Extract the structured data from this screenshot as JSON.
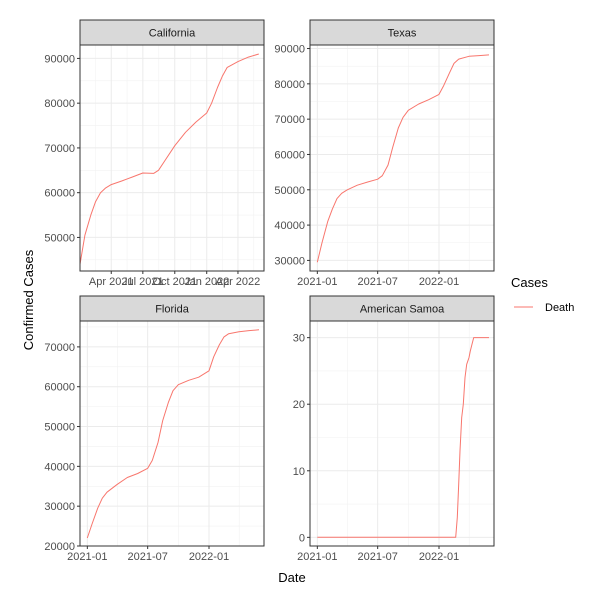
{
  "chart_data": {
    "type": "line",
    "xlabel": "Date",
    "ylabel": "Confirmed Cases",
    "legend": {
      "title": "Cases",
      "placement": "right",
      "entries": [
        "Death"
      ]
    },
    "series_color": "#f8766d",
    "grid": true,
    "panels": [
      {
        "name": "California",
        "xlim": [
          "2021-01-01",
          "2022-06-15"
        ],
        "ylim": [
          42500,
          93000
        ],
        "x_ticks": [
          {
            "value": "2021-04-01",
            "label": "Apr 2021"
          },
          {
            "value": "2021-07-01",
            "label": "Jul 2021"
          },
          {
            "value": "2021-10-01",
            "label": "Oct 2021"
          },
          {
            "value": "2022-01-01",
            "label": "Jan 2022"
          },
          {
            "value": "2022-04-01",
            "label": "Apr 2022"
          }
        ],
        "y_ticks": [
          50000,
          60000,
          70000,
          80000,
          90000
        ],
        "series": [
          {
            "name": "Death",
            "x": [
              "2021-01-01",
              "2021-01-15",
              "2021-02-01",
              "2021-02-15",
              "2021-03-01",
              "2021-03-15",
              "2021-04-01",
              "2021-05-01",
              "2021-06-01",
              "2021-07-01",
              "2021-08-01",
              "2021-08-15",
              "2021-09-01",
              "2021-10-01",
              "2021-11-01",
              "2021-12-01",
              "2022-01-01",
              "2022-01-15",
              "2022-02-01",
              "2022-02-15",
              "2022-03-01",
              "2022-04-01",
              "2022-05-01",
              "2022-05-31"
            ],
            "values": [
              44000,
              50500,
              55000,
              58000,
              60000,
              61000,
              61800,
              62600,
              63500,
              64400,
              64300,
              65000,
              67000,
              70500,
              73500,
              75800,
              77800,
              80000,
              83500,
              86000,
              88000,
              89300,
              90300,
              91000
            ]
          }
        ]
      },
      {
        "name": "Texas",
        "xlim": [
          "2020-12-10",
          "2022-06-15"
        ],
        "ylim": [
          27000,
          91000
        ],
        "x_ticks": [
          {
            "value": "2021-01-01",
            "label": "2021-01"
          },
          {
            "value": "2021-07-01",
            "label": "2021-07"
          },
          {
            "value": "2022-01-01",
            "label": "2022-01"
          }
        ],
        "y_ticks": [
          30000,
          40000,
          50000,
          60000,
          70000,
          80000,
          90000
        ],
        "series": [
          {
            "name": "Death",
            "x": [
              "2021-01-01",
              "2021-01-15",
              "2021-02-01",
              "2021-02-15",
              "2021-03-01",
              "2021-03-15",
              "2021-04-01",
              "2021-05-01",
              "2021-06-01",
              "2021-07-01",
              "2021-07-15",
              "2021-08-01",
              "2021-08-15",
              "2021-09-01",
              "2021-09-15",
              "2021-10-01",
              "2021-11-01",
              "2021-12-01",
              "2022-01-01",
              "2022-01-15",
              "2022-02-01",
              "2022-02-15",
              "2022-03-01",
              "2022-04-01",
              "2022-05-01",
              "2022-05-31"
            ],
            "values": [
              29500,
              35000,
              41000,
              44500,
              47500,
              49000,
              50000,
              51300,
              52200,
              53000,
              54000,
              57000,
              62000,
              67500,
              70500,
              72500,
              74300,
              75500,
              77000,
              79500,
              83000,
              85800,
              87000,
              87800,
              88000,
              88200
            ]
          }
        ]
      },
      {
        "name": "Florida",
        "xlim": [
          "2020-12-10",
          "2022-06-15"
        ],
        "ylim": [
          20000,
          76500
        ],
        "x_ticks": [
          {
            "value": "2021-01-01",
            "label": "2021-01"
          },
          {
            "value": "2021-07-01",
            "label": "2021-07"
          },
          {
            "value": "2022-01-01",
            "label": "2022-01"
          }
        ],
        "y_ticks": [
          20000,
          30000,
          40000,
          50000,
          60000,
          70000
        ],
        "series": [
          {
            "name": "Death",
            "x": [
              "2021-01-01",
              "2021-01-15",
              "2021-02-01",
              "2021-02-15",
              "2021-03-01",
              "2021-04-01",
              "2021-05-01",
              "2021-06-01",
              "2021-07-01",
              "2021-07-15",
              "2021-08-01",
              "2021-08-15",
              "2021-09-01",
              "2021-09-15",
              "2021-10-01",
              "2021-11-01",
              "2021-12-01",
              "2022-01-01",
              "2022-01-15",
              "2022-02-01",
              "2022-02-15",
              "2022-03-01",
              "2022-04-01",
              "2022-05-01",
              "2022-05-31"
            ],
            "values": [
              22000,
              25500,
              29500,
              32000,
              33500,
              35500,
              37200,
              38200,
              39500,
              41500,
              46000,
              51500,
              56000,
              59000,
              60500,
              61600,
              62400,
              64000,
              67500,
              70500,
              72500,
              73300,
              73800,
              74100,
              74300
            ]
          }
        ]
      },
      {
        "name": "American Samoa",
        "xlim": [
          "2020-12-10",
          "2022-06-15"
        ],
        "ylim": [
          -1.3,
          32.5
        ],
        "x_ticks": [
          {
            "value": "2021-01-01",
            "label": "2021-01"
          },
          {
            "value": "2021-07-01",
            "label": "2021-07"
          },
          {
            "value": "2022-01-01",
            "label": "2022-01"
          }
        ],
        "y_ticks": [
          0,
          10,
          20,
          30
        ],
        "series": [
          {
            "name": "Death",
            "x": [
              "2021-01-01",
              "2022-02-20",
              "2022-02-25",
              "2022-03-01",
              "2022-03-05",
              "2022-03-10",
              "2022-03-15",
              "2022-03-20",
              "2022-03-25",
              "2022-04-01",
              "2022-04-05",
              "2022-04-10",
              "2022-04-15",
              "2022-04-20",
              "2022-04-25",
              "2022-05-31"
            ],
            "values": [
              0,
              0,
              3,
              8,
              13,
              18,
              20,
              24,
              26,
              27,
              28,
              29,
              30,
              30,
              30,
              30
            ]
          }
        ]
      }
    ]
  }
}
